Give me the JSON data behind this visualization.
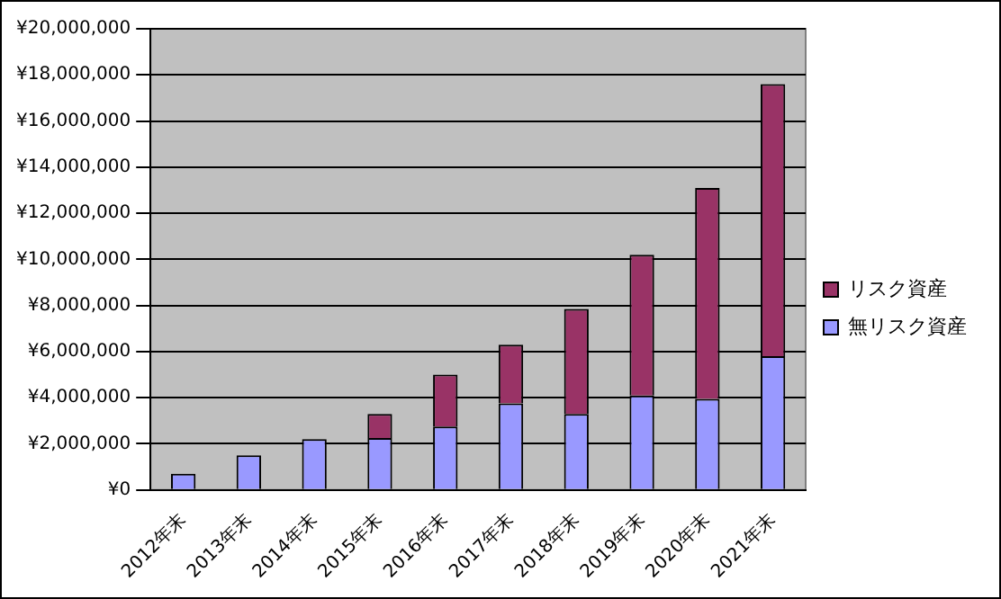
{
  "chart_data": {
    "type": "bar",
    "stacked": true,
    "categories": [
      "2012年末",
      "2013年末",
      "2014年末",
      "2015年末",
      "2016年末",
      "2017年末",
      "2018年末",
      "2019年末",
      "2020年末",
      "2021年末"
    ],
    "series": [
      {
        "name": "無リスク資産",
        "color": "#9999ff",
        "values": [
          700000,
          1500000,
          2200000,
          2250000,
          2750000,
          3750000,
          3300000,
          4100000,
          3950000,
          5800000
        ]
      },
      {
        "name": "リスク資産",
        "color": "#993366",
        "values": [
          0,
          0,
          0,
          1050000,
          2250000,
          2550000,
          4550000,
          6100000,
          9150000,
          11800000
        ]
      }
    ],
    "ylim": [
      0,
      20000000
    ],
    "yticks": [
      {
        "value": 0,
        "label": "¥0"
      },
      {
        "value": 2000000,
        "label": "¥2,000,000"
      },
      {
        "value": 4000000,
        "label": "¥4,000,000"
      },
      {
        "value": 6000000,
        "label": "¥6,000,000"
      },
      {
        "value": 8000000,
        "label": "¥8,000,000"
      },
      {
        "value": 10000000,
        "label": "¥10,000,000"
      },
      {
        "value": 12000000,
        "label": "¥12,000,000"
      },
      {
        "value": 14000000,
        "label": "¥14,000,000"
      },
      {
        "value": 16000000,
        "label": "¥16,000,000"
      },
      {
        "value": 18000000,
        "label": "¥18,000,000"
      },
      {
        "value": 20000000,
        "label": "¥20,000,000"
      }
    ],
    "grid": "y",
    "legend": "right"
  }
}
